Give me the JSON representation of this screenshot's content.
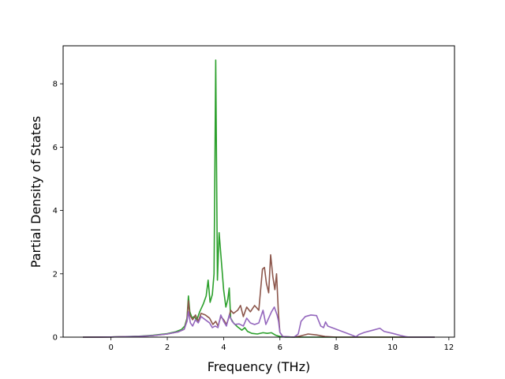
{
  "chart_data": {
    "type": "line",
    "title": "",
    "xlabel": "Frequency (THz)",
    "ylabel": "Partial Density of States",
    "xlim": [
      -1.7,
      12.2
    ],
    "ylim": [
      0,
      9.2
    ],
    "xticks": [
      0,
      2,
      4,
      6,
      8,
      10,
      12
    ],
    "yticks": [
      0,
      2,
      4,
      6,
      8
    ],
    "grid": false,
    "legend": "none",
    "series": [
      {
        "color": "#2ca02c",
        "points": [
          [
            -1.0,
            0
          ],
          [
            0.0,
            0.005
          ],
          [
            1.0,
            0.03
          ],
          [
            1.5,
            0.06
          ],
          [
            2.0,
            0.11
          ],
          [
            2.3,
            0.17
          ],
          [
            2.5,
            0.24
          ],
          [
            2.62,
            0.35
          ],
          [
            2.7,
            0.6
          ],
          [
            2.75,
            1.3
          ],
          [
            2.8,
            0.8
          ],
          [
            2.88,
            0.6
          ],
          [
            2.95,
            0.65
          ],
          [
            3.05,
            0.55
          ],
          [
            3.15,
            0.8
          ],
          [
            3.28,
            1.05
          ],
          [
            3.38,
            1.3
          ],
          [
            3.45,
            1.8
          ],
          [
            3.52,
            1.1
          ],
          [
            3.6,
            1.35
          ],
          [
            3.66,
            2.0
          ],
          [
            3.72,
            8.75
          ],
          [
            3.78,
            1.8
          ],
          [
            3.84,
            3.3
          ],
          [
            3.92,
            2.4
          ],
          [
            4.0,
            1.5
          ],
          [
            4.08,
            0.95
          ],
          [
            4.15,
            1.2
          ],
          [
            4.2,
            1.55
          ],
          [
            4.25,
            0.6
          ],
          [
            4.35,
            0.45
          ],
          [
            4.5,
            0.32
          ],
          [
            4.65,
            0.22
          ],
          [
            4.75,
            0.3
          ],
          [
            4.85,
            0.18
          ],
          [
            5.0,
            0.12
          ],
          [
            5.2,
            0.1
          ],
          [
            5.4,
            0.14
          ],
          [
            5.55,
            0.12
          ],
          [
            5.7,
            0.14
          ],
          [
            5.85,
            0.06
          ],
          [
            6.0,
            0.02
          ],
          [
            6.2,
            0
          ],
          [
            11.5,
            0
          ]
        ]
      },
      {
        "color": "#8c564b",
        "points": [
          [
            -1.0,
            0
          ],
          [
            0.0,
            0.004
          ],
          [
            1.0,
            0.025
          ],
          [
            1.5,
            0.05
          ],
          [
            2.0,
            0.1
          ],
          [
            2.4,
            0.17
          ],
          [
            2.6,
            0.25
          ],
          [
            2.7,
            0.55
          ],
          [
            2.75,
            1.15
          ],
          [
            2.8,
            0.7
          ],
          [
            2.9,
            0.55
          ],
          [
            3.0,
            0.7
          ],
          [
            3.1,
            0.5
          ],
          [
            3.2,
            0.75
          ],
          [
            3.35,
            0.7
          ],
          [
            3.5,
            0.6
          ],
          [
            3.62,
            0.4
          ],
          [
            3.72,
            0.5
          ],
          [
            3.8,
            0.35
          ],
          [
            3.9,
            0.65
          ],
          [
            4.0,
            0.55
          ],
          [
            4.1,
            0.4
          ],
          [
            4.18,
            0.6
          ],
          [
            4.25,
            0.85
          ],
          [
            4.35,
            0.75
          ],
          [
            4.5,
            0.85
          ],
          [
            4.6,
            1.0
          ],
          [
            4.7,
            0.65
          ],
          [
            4.82,
            0.95
          ],
          [
            4.95,
            0.8
          ],
          [
            5.1,
            1.0
          ],
          [
            5.25,
            0.85
          ],
          [
            5.38,
            2.15
          ],
          [
            5.45,
            2.2
          ],
          [
            5.52,
            1.7
          ],
          [
            5.6,
            1.4
          ],
          [
            5.67,
            2.6
          ],
          [
            5.75,
            1.9
          ],
          [
            5.82,
            1.5
          ],
          [
            5.88,
            2.0
          ],
          [
            5.95,
            0.7
          ],
          [
            6.0,
            0.15
          ],
          [
            6.1,
            0.02
          ],
          [
            6.5,
            0
          ],
          [
            6.7,
            0.03
          ],
          [
            7.0,
            0.1
          ],
          [
            7.3,
            0.07
          ],
          [
            7.6,
            0.02
          ],
          [
            8.0,
            0
          ],
          [
            11.5,
            0
          ]
        ]
      },
      {
        "color": "#9467bd",
        "points": [
          [
            -1.0,
            0
          ],
          [
            0.0,
            0.004
          ],
          [
            1.0,
            0.025
          ],
          [
            1.5,
            0.05
          ],
          [
            2.0,
            0.1
          ],
          [
            2.4,
            0.17
          ],
          [
            2.6,
            0.25
          ],
          [
            2.7,
            0.5
          ],
          [
            2.75,
            0.8
          ],
          [
            2.82,
            0.45
          ],
          [
            2.9,
            0.35
          ],
          [
            3.0,
            0.55
          ],
          [
            3.1,
            0.45
          ],
          [
            3.2,
            0.65
          ],
          [
            3.35,
            0.55
          ],
          [
            3.5,
            0.45
          ],
          [
            3.6,
            0.3
          ],
          [
            3.7,
            0.35
          ],
          [
            3.8,
            0.3
          ],
          [
            3.9,
            0.7
          ],
          [
            4.0,
            0.5
          ],
          [
            4.1,
            0.35
          ],
          [
            4.2,
            0.7
          ],
          [
            4.3,
            0.5
          ],
          [
            4.4,
            0.4
          ],
          [
            4.55,
            0.42
          ],
          [
            4.7,
            0.35
          ],
          [
            4.82,
            0.6
          ],
          [
            4.95,
            0.45
          ],
          [
            5.1,
            0.4
          ],
          [
            5.25,
            0.45
          ],
          [
            5.4,
            0.85
          ],
          [
            5.5,
            0.4
          ],
          [
            5.6,
            0.6
          ],
          [
            5.7,
            0.8
          ],
          [
            5.8,
            0.95
          ],
          [
            5.9,
            0.7
          ],
          [
            5.95,
            0.5
          ],
          [
            6.0,
            0.15
          ],
          [
            6.1,
            0.02
          ],
          [
            6.5,
            0
          ],
          [
            6.65,
            0.1
          ],
          [
            6.75,
            0.5
          ],
          [
            6.9,
            0.65
          ],
          [
            7.1,
            0.7
          ],
          [
            7.3,
            0.68
          ],
          [
            7.45,
            0.35
          ],
          [
            7.55,
            0.3
          ],
          [
            7.62,
            0.48
          ],
          [
            7.7,
            0.35
          ],
          [
            8.0,
            0.25
          ],
          [
            8.3,
            0.15
          ],
          [
            8.6,
            0.05
          ],
          [
            8.7,
            0.01
          ],
          [
            8.8,
            0.08
          ],
          [
            9.0,
            0.15
          ],
          [
            9.3,
            0.22
          ],
          [
            9.55,
            0.28
          ],
          [
            9.7,
            0.18
          ],
          [
            10.0,
            0.12
          ],
          [
            10.3,
            0.05
          ],
          [
            10.5,
            0.01
          ],
          [
            10.6,
            0
          ],
          [
            11.5,
            0
          ]
        ]
      }
    ]
  }
}
